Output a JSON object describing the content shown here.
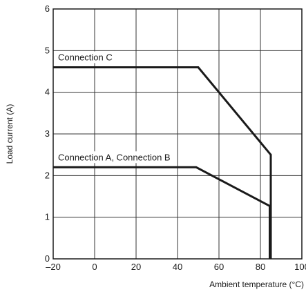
{
  "chart_data": {
    "type": "line",
    "title": "",
    "xlabel": "Ambient temperature (°C)",
    "ylabel": "Load current (A)",
    "xlim": [
      -20,
      100
    ],
    "ylim": [
      0,
      6
    ],
    "xticks": [
      -20,
      0,
      20,
      40,
      60,
      80,
      100
    ],
    "xtick_labels": [
      "–20",
      "0",
      "20",
      "40",
      "60",
      "80",
      "100"
    ],
    "yticks": [
      0,
      1,
      2,
      3,
      4,
      5,
      6
    ],
    "ytick_labels": [
      "0",
      "1",
      "2",
      "3",
      "4",
      "5",
      "6"
    ],
    "grid": true,
    "legend": "none",
    "series": [
      {
        "name": "Connection C",
        "x": [
          -20,
          50,
          85,
          85
        ],
        "y": [
          4.6,
          4.6,
          2.5,
          0
        ]
      },
      {
        "name": "Connection A, Connection B",
        "x": [
          -20,
          49,
          84.5,
          84.5
        ],
        "y": [
          2.2,
          2.2,
          1.27,
          0
        ]
      }
    ]
  }
}
